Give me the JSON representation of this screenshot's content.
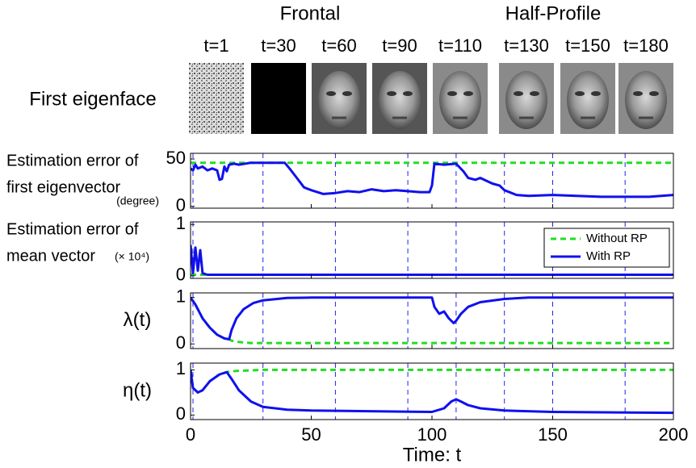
{
  "header": {
    "groups": [
      "Frontal",
      "Half-Profile"
    ],
    "snapshots": [
      {
        "label": "t=1",
        "t": 1
      },
      {
        "label": "t=30",
        "t": 30
      },
      {
        "label": "t=60",
        "t": 60
      },
      {
        "label": "t=90",
        "t": 90
      },
      {
        "label": "t=110",
        "t": 110
      },
      {
        "label": "t=130",
        "t": 130
      },
      {
        "label": "t=150",
        "t": 150
      },
      {
        "label": "t=180",
        "t": 180
      }
    ],
    "row_label": "First eigenface"
  },
  "chart_data": [
    {
      "type": "line",
      "ylabel": [
        "Estimation error of",
        "first eigenvector"
      ],
      "ylabel_unit": "(degree)",
      "x": [
        0,
        1,
        2,
        3,
        5,
        7,
        9,
        11,
        12,
        13,
        14,
        15,
        16,
        18,
        20,
        25,
        30,
        35,
        39,
        41,
        44,
        47,
        50,
        55,
        60,
        65,
        70,
        75,
        80,
        85,
        90,
        95,
        99,
        100,
        101,
        105,
        110,
        113,
        115,
        118,
        120,
        125,
        128,
        130,
        135,
        140,
        150,
        160,
        170,
        180,
        190,
        195,
        200
      ],
      "series": [
        {
          "name": "Without RP",
          "color": "#22dd22",
          "dashed": true,
          "values": [
            46,
            46,
            46,
            46,
            46,
            46,
            46,
            46,
            46,
            46,
            46,
            46,
            46,
            46,
            46,
            46,
            46,
            46,
            46,
            46,
            46,
            46,
            46,
            46,
            46,
            46,
            46,
            46,
            46,
            46,
            46,
            46,
            46,
            46,
            46,
            46,
            46,
            46,
            46,
            46,
            46,
            46,
            46,
            46,
            46,
            46,
            46,
            46,
            46,
            46,
            46,
            46,
            46
          ]
        },
        {
          "name": "With RP",
          "color": "#1010ee",
          "dashed": false,
          "values": [
            40,
            38,
            44,
            40,
            42,
            38,
            40,
            38,
            28,
            29,
            42,
            37,
            44,
            45,
            44,
            46,
            46,
            46,
            46,
            40,
            30,
            20,
            17,
            13,
            14,
            16,
            15,
            18,
            16,
            17,
            16,
            15,
            15,
            22,
            45,
            44,
            45,
            37,
            30,
            28,
            30,
            24,
            22,
            17,
            12,
            11,
            12,
            11,
            10,
            10,
            10,
            11,
            12
          ]
        }
      ],
      "xlim": [
        0,
        200
      ],
      "xticks": [
        0,
        50,
        100,
        150,
        200
      ],
      "ylim": [
        -2,
        56
      ],
      "yticks": [
        0,
        50
      ]
    },
    {
      "type": "line",
      "ylabel": [
        "Estimation error of",
        "mean vector"
      ],
      "ylabel_unit": "(× 10⁴)",
      "legend": "upper right",
      "x": [
        0,
        1,
        2,
        3,
        4,
        5,
        7,
        20,
        50,
        100,
        150,
        200
      ],
      "series": [
        {
          "name": "Without RP",
          "color": "#22dd22",
          "dashed": true,
          "values": [
            0.02,
            0.02,
            0.02,
            0.02,
            0.02,
            0.02,
            0.02,
            0.02,
            0.02,
            0.02,
            0.02,
            0.02
          ]
        },
        {
          "name": "With RP",
          "color": "#1010ee",
          "dashed": false,
          "values": [
            0.6,
            0.05,
            0.55,
            0.1,
            0.5,
            0.05,
            0.02,
            0.02,
            0.02,
            0.02,
            0.02,
            0.02
          ]
        }
      ],
      "xlim": [
        0,
        200
      ],
      "xticks": [
        0,
        50,
        100,
        150,
        200
      ],
      "ylim": [
        -0.05,
        1.05
      ],
      "yticks": [
        0,
        1
      ]
    },
    {
      "type": "line",
      "ylabel": [
        "λ(t)"
      ],
      "x": [
        0,
        2,
        5,
        8,
        11,
        14,
        16,
        17,
        19,
        22,
        25,
        26,
        30,
        40,
        50,
        100,
        101,
        103,
        105,
        107,
        109,
        110,
        112,
        115,
        120,
        130,
        140,
        200
      ],
      "series": [
        {
          "name": "Without RP",
          "color": "#22dd22",
          "dashed": true,
          "values": [
            1,
            0.85,
            0.55,
            0.35,
            0.2,
            0.12,
            0.1,
            0.07,
            0.05,
            0.03,
            0.02,
            0.02,
            0.02,
            0.02,
            0.02,
            0.02,
            0.02,
            0.02,
            0.02,
            0.02,
            0.02,
            0.02,
            0.02,
            0.02,
            0.02,
            0.02,
            0.02,
            0.02
          ]
        },
        {
          "name": "With RP",
          "color": "#1010ee",
          "dashed": false,
          "values": [
            1,
            0.85,
            0.55,
            0.35,
            0.2,
            0.12,
            0.1,
            0.3,
            0.55,
            0.75,
            0.85,
            0.88,
            0.94,
            0.99,
            1,
            1,
            0.8,
            0.65,
            0.7,
            0.55,
            0.45,
            0.5,
            0.65,
            0.8,
            0.9,
            0.97,
            1,
            1
          ]
        }
      ],
      "xlim": [
        0,
        200
      ],
      "xticks": [
        0,
        50,
        100,
        150,
        200
      ],
      "ylim": [
        -0.1,
        1.1
      ],
      "yticks": [
        0,
        1
      ]
    },
    {
      "type": "line",
      "ylabel": [
        "η(t)"
      ],
      "xlabel": "Time: t",
      "x": [
        0,
        1,
        3,
        5,
        8,
        12,
        15,
        17,
        20,
        25,
        30,
        40,
        50,
        100,
        105,
        108,
        110,
        112,
        115,
        120,
        130,
        150,
        200
      ],
      "series": [
        {
          "name": "Without RP",
          "color": "#22dd22",
          "dashed": true,
          "values": [
            1,
            0.6,
            0.5,
            0.55,
            0.75,
            0.9,
            0.95,
            0.97,
            0.98,
            0.99,
            1,
            1,
            1,
            1,
            1,
            1,
            1,
            1,
            1,
            1,
            1,
            1,
            1
          ]
        },
        {
          "name": "With RP",
          "color": "#1010ee",
          "dashed": false,
          "values": [
            1,
            0.6,
            0.5,
            0.55,
            0.75,
            0.9,
            0.95,
            0.8,
            0.55,
            0.3,
            0.18,
            0.12,
            0.1,
            0.07,
            0.15,
            0.3,
            0.35,
            0.3,
            0.22,
            0.15,
            0.1,
            0.07,
            0.05
          ]
        }
      ],
      "xlim": [
        0,
        200
      ],
      "xticks": [
        0,
        50,
        100,
        150,
        200
      ],
      "ylim": [
        -0.1,
        1.15
      ],
      "yticks": [
        0,
        1
      ]
    }
  ]
}
